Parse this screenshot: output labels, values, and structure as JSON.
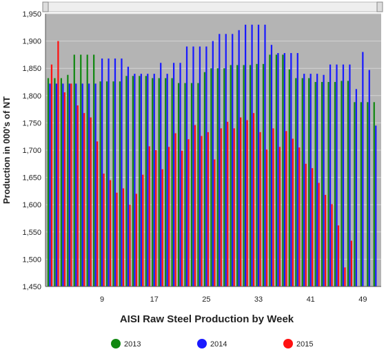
{
  "chart_data": {
    "type": "bar",
    "xlabel": "AISI Raw Steel Production by Week",
    "ylabel": "Production in 000's of NT",
    "categories": [
      null,
      null,
      null,
      null,
      null,
      null,
      null,
      null,
      "9",
      null,
      null,
      null,
      null,
      null,
      null,
      null,
      "17",
      null,
      null,
      null,
      null,
      null,
      null,
      null,
      "25",
      null,
      null,
      null,
      null,
      null,
      null,
      null,
      "33",
      null,
      null,
      null,
      null,
      null,
      null,
      null,
      "41",
      null,
      null,
      null,
      null,
      null,
      null,
      null,
      "49",
      null,
      null
    ],
    "series": [
      {
        "name": "2013",
        "color": "#118811",
        "values": [
          1832,
          1832,
          1832,
          1838,
          1875,
          1875,
          1875,
          1875,
          1826,
          1826,
          1826,
          1826,
          1836,
          1836,
          1836,
          1836,
          1832,
          1832,
          1832,
          1832,
          1823,
          1823,
          1823,
          1823,
          1843,
          1850,
          1850,
          1850,
          1856,
          1856,
          1856,
          1856,
          1858,
          1858,
          1875,
          1875,
          1875,
          1848,
          1832,
          1832,
          1832,
          1825,
          1825,
          1825,
          1825,
          1827,
          1827,
          1788,
          1788,
          1788,
          1788
        ]
      },
      {
        "name": "2014",
        "color": "#1a1aff",
        "values": [
          1822,
          1822,
          1822,
          1822,
          1822,
          1822,
          1822,
          1822,
          1868,
          1868,
          1868,
          1868,
          1853,
          1840,
          1840,
          1840,
          1840,
          1860,
          1840,
          1860,
          1860,
          1890,
          1890,
          1890,
          1890,
          1900,
          1913,
          1913,
          1913,
          1920,
          1930,
          1930,
          1930,
          1930,
          1893,
          1878,
          1878,
          1878,
          1878,
          1840,
          1840,
          1840,
          1838,
          1857,
          1857,
          1857,
          1857,
          1812,
          1880,
          1847,
          1745
        ]
      },
      {
        "name": "2015",
        "color": "#ff1111",
        "values": [
          1857,
          1900,
          1806,
          1822,
          1782,
          1768,
          1760,
          1716,
          1657,
          1645,
          1622,
          1630,
          1600,
          1620,
          1655,
          1707,
          1700,
          1665,
          1706,
          1731,
          1699,
          1720,
          1746,
          1726,
          1733,
          1683,
          1740,
          1752,
          1740,
          1760,
          1755,
          1768,
          1733,
          1701,
          1740,
          1706,
          1735,
          1721,
          1705,
          1675,
          1667,
          1640,
          1618,
          1601,
          1562,
          1485,
          1534,
          null,
          null,
          null,
          null
        ]
      }
    ],
    "ylim": [
      1450,
      1950
    ],
    "yticks": [
      {
        "value": 1450,
        "label": "1,450"
      },
      {
        "value": 1500,
        "label": "1,500"
      },
      {
        "value": 1550,
        "label": "1,550"
      },
      {
        "value": 1600,
        "label": "1,600"
      },
      {
        "value": 1650,
        "label": "1,650"
      },
      {
        "value": 1700,
        "label": "1,700"
      },
      {
        "value": 1750,
        "label": "1,750"
      },
      {
        "value": 1800,
        "label": "1,800"
      },
      {
        "value": 1850,
        "label": "1,850"
      },
      {
        "value": 1900,
        "label": "1,900"
      },
      {
        "value": 1950,
        "label": "1,950"
      }
    ],
    "grid": true,
    "legend": "bottom"
  }
}
